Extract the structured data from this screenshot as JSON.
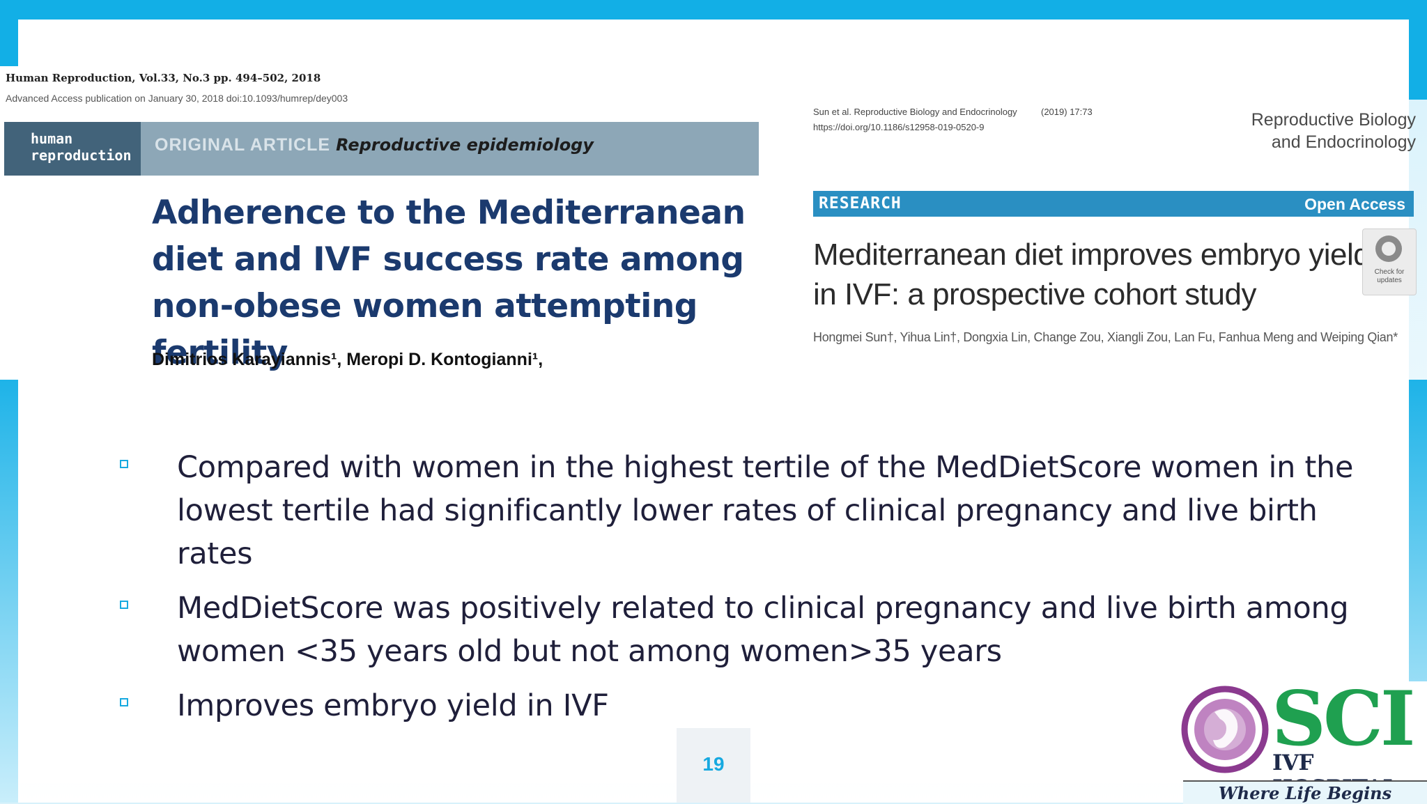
{
  "slide": {
    "page_number": "19",
    "accent_color": "#12afe6"
  },
  "paper_left": {
    "journal_line": "Human Reproduction, Vol.33, No.3 pp. 494–502, 2018",
    "access_line": "Advanced Access publication on January 30, 2018   doi:10.1093/humrep/dey003",
    "logo_line1": "human",
    "logo_line2": "reproduction",
    "article_type": "ORIGINAL ARTICLE",
    "category": "Reproductive epidemiology",
    "title": "Adherence to the Mediterranean diet and IVF success rate among non-obese women attempting fertility",
    "authors": "Dimitrios Karayiannis¹, Meropi D. Kontogianni¹,"
  },
  "paper_right": {
    "citation_line1": "Sun et al. Reproductive Biology and Endocrinology",
    "citation_year": "(2019) 17:73",
    "citation_line2": "https://doi.org/10.1186/s12958-019-0520-9",
    "journal_name_line1": "Reproductive Biology",
    "journal_name_line2": "and Endocrinology",
    "section_label": "RESEARCH",
    "access_label": "Open Access",
    "title": "Mediterranean diet improves embryo yield in IVF: a prospective cohort study",
    "check_label": "Check for updates",
    "authors": "Hongmei Sun†, Yihua Lin†, Dongxia Lin, Change Zou, Xiangli Zou, Lan Fu, Fanhua Meng and Weiping Qian*"
  },
  "bullets": [
    "Compared with women in the highest tertile of the MedDietScore women in the lowest tertile had significantly lower rates of clinical pregnancy and live birth rates",
    "MedDietScore was positively related to clinical pregnancy and live birth among women <35 years old  but not among women>35 years",
    "Improves embryo yield in IVF"
  ],
  "logo": {
    "name": "SCI",
    "subtitle": "IVF HOSPITAL",
    "tagline": "Where Life Begins",
    "colors": {
      "green": "#1fa050",
      "purple": "#8b3a8f",
      "navy": "#1e2a4a"
    }
  }
}
